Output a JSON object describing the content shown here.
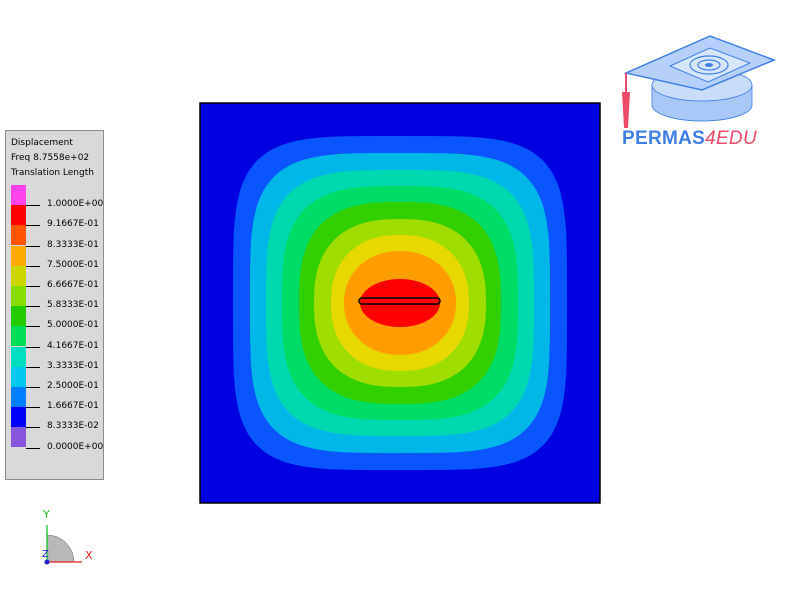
{
  "legend": {
    "line1": "Displacement",
    "line2": "Freq 8.7558e+02",
    "line3": "Translation Length",
    "values": [
      "1.0000E+00",
      "9.1667E-01",
      "8.3333E-01",
      "7.5000E-01",
      "6.6667E-01",
      "5.8333E-01",
      "5.0000E-01",
      "4.1667E-01",
      "3.3333E-01",
      "2.5000E-01",
      "1.6667E-01",
      "8.3333E-02",
      "0.0000E+00"
    ],
    "colors": [
      "#ff44ee",
      "#ff0000",
      "#ff5500",
      "#ffaa00",
      "#ccd600",
      "#88dd00",
      "#22cc00",
      "#00dd55",
      "#00e0c0",
      "#00c8ee",
      "#0080ff",
      "#0000ff",
      "#8855dd"
    ]
  },
  "contour": {
    "background": "#0000e0",
    "levels": [
      "#0a55ff",
      "#00b8e8",
      "#00d8b0",
      "#00dd66",
      "#33d000",
      "#a0dd00",
      "#e6d800",
      "#ff9c00",
      "#ff0000"
    ]
  },
  "axes": {
    "x": "X",
    "y": "Y",
    "z": "Z"
  },
  "logo": {
    "part1": "PERMAS",
    "part2": "4EDU"
  }
}
